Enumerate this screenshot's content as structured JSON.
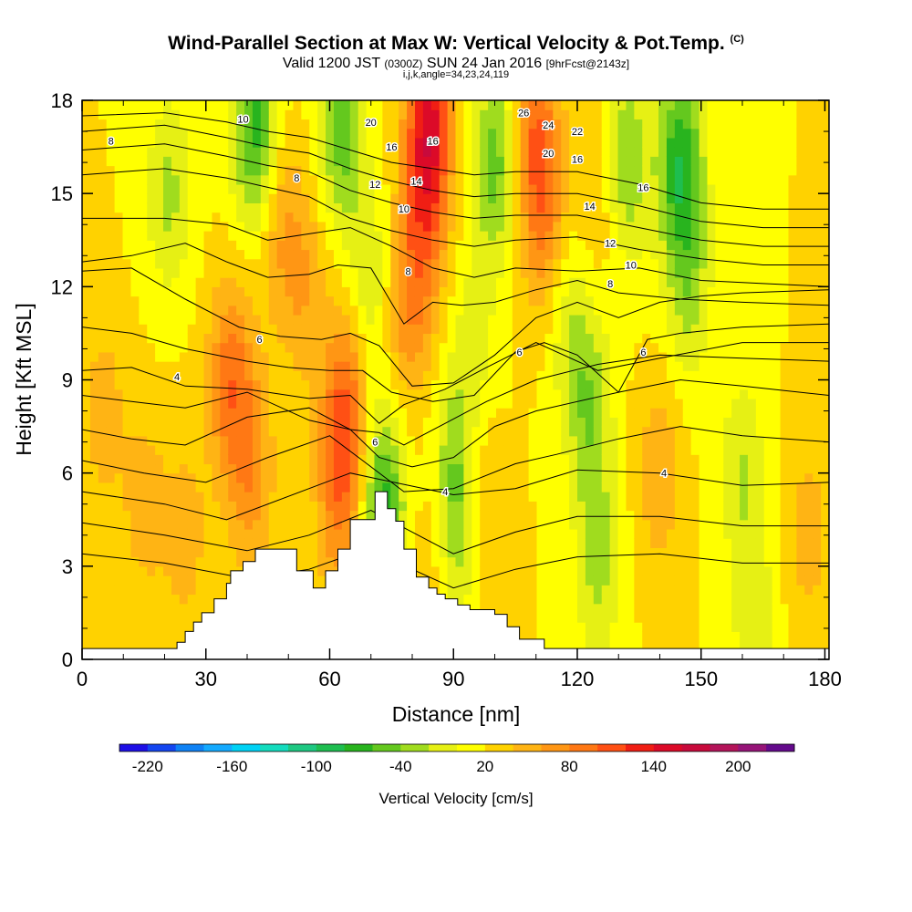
{
  "title": {
    "main": "Wind-Parallel Section at Max W: Vertical Velocity & Pot.Temp.",
    "copyright": "(C)",
    "valid_prefix": "Valid 1200 JST",
    "valid_utc": "(0300Z)",
    "valid_date": "SUN 24 Jan 2016",
    "forecast": "[9hrFcst@2143z]",
    "params": "i,j,k,angle=34,23,24,119"
  },
  "chart_data": {
    "type": "heatmap",
    "xlabel": "Distance [nm]",
    "ylabel": "Height [Kft MSL]",
    "xlim": [
      0,
      181
    ],
    "ylim": [
      0,
      18
    ],
    "xticks": [
      0,
      30,
      60,
      90,
      120,
      150,
      180
    ],
    "yticks": [
      0,
      3,
      6,
      9,
      12,
      15,
      18
    ],
    "colorbar": {
      "label": "Vertical Velocity [cm/s]",
      "min": -240,
      "max": 240,
      "step": 20,
      "tick_values": [
        -220,
        -160,
        -100,
        -40,
        20,
        80,
        140,
        200
      ],
      "tick_labels": [
        "-220",
        "-160",
        "-100",
        "-40",
        "20",
        "80",
        "140",
        "200"
      ],
      "colors": [
        "#1e0fe6",
        "#1446f0",
        "#0f82f5",
        "#14aaff",
        "#00d2f5",
        "#14dcbe",
        "#1ec882",
        "#1ebe50",
        "#28b41e",
        "#64c81e",
        "#a0dc1e",
        "#e6f014",
        "#ffff00",
        "#ffd200",
        "#ffb414",
        "#ff9614",
        "#ff7814",
        "#ff5014",
        "#f01e14",
        "#dc0a28",
        "#c80a3c",
        "#b4145a",
        "#961478",
        "#640a8c"
      ]
    },
    "vertical_velocity": {
      "background": 20,
      "features": [
        {
          "x": 5,
          "y": 8,
          "value": 50
        },
        {
          "x": 15,
          "y": 5,
          "value": 50
        },
        {
          "x": 25,
          "y": 4,
          "value": 50
        },
        {
          "x": 36,
          "y": 9,
          "value": 90
        },
        {
          "x": 41,
          "y": 6,
          "value": 70
        },
        {
          "x": 48,
          "y": 14,
          "value": 60
        },
        {
          "x": 54,
          "y": 12,
          "value": 55
        },
        {
          "x": 64,
          "y": 8,
          "value": 100
        },
        {
          "x": 62,
          "y": 5,
          "value": 70
        },
        {
          "x": 78,
          "y": 11,
          "value": 60
        },
        {
          "x": 84,
          "y": 17,
          "value": 150
        },
        {
          "x": 82,
          "y": 13,
          "value": 70
        },
        {
          "x": 96,
          "y": 5,
          "value": 60
        },
        {
          "x": 86,
          "y": 4,
          "value": 45
        },
        {
          "x": 110,
          "y": 17,
          "value": 90
        },
        {
          "x": 112,
          "y": 14,
          "value": 70
        },
        {
          "x": 125,
          "y": 15,
          "value": 45
        },
        {
          "x": 140,
          "y": 6,
          "value": 55
        },
        {
          "x": 176,
          "y": 4,
          "value": 50
        },
        {
          "x": 42,
          "y": 17,
          "value": -70
        },
        {
          "x": 63,
          "y": 17,
          "value": -50
        },
        {
          "x": 100,
          "y": 16,
          "value": -50
        },
        {
          "x": 145,
          "y": 16,
          "value": -75
        },
        {
          "x": 132,
          "y": 16,
          "value": -40
        },
        {
          "x": 73,
          "y": 5,
          "value": -70
        },
        {
          "x": 90,
          "y": 6,
          "value": -35
        },
        {
          "x": 92,
          "y": 4,
          "value": -25
        },
        {
          "x": 123,
          "y": 8,
          "value": -35
        },
        {
          "x": 125,
          "y": 3,
          "value": -25
        },
        {
          "x": 118,
          "y": 11,
          "value": -15
        },
        {
          "x": 160,
          "y": 6,
          "value": -20
        },
        {
          "x": 163,
          "y": 1,
          "value": -15
        },
        {
          "x": 147,
          "y": 12,
          "value": -25
        },
        {
          "x": 21,
          "y": 15,
          "value": -25
        },
        {
          "x": 70,
          "y": 12,
          "value": -20
        },
        {
          "x": 95,
          "y": 10,
          "value": -10
        }
      ]
    },
    "terrain": {
      "x": [
        0,
        22,
        23,
        25,
        27,
        29,
        32,
        35,
        36,
        39,
        42,
        49,
        52,
        56,
        59,
        62,
        65,
        71,
        73,
        74,
        76,
        78,
        81,
        84,
        86,
        88,
        91,
        94,
        100,
        103,
        106,
        109,
        112,
        115,
        181
      ],
      "height": [
        0.35,
        0.35,
        0.55,
        0.9,
        1.2,
        1.5,
        1.95,
        2.45,
        2.85,
        3.15,
        3.55,
        3.55,
        2.85,
        2.3,
        2.85,
        3.55,
        4.5,
        5.4,
        5.4,
        4.85,
        4.45,
        3.55,
        2.65,
        2.3,
        2.1,
        1.95,
        1.75,
        1.6,
        1.45,
        1.05,
        0.65,
        0.65,
        0.35,
        0.35,
        0.35
      ]
    },
    "potential_temperature": {
      "contour_interval": 0.5,
      "labels_shown": [
        "4",
        "6",
        "8",
        "10",
        "12",
        "14",
        "16",
        "18",
        "20",
        "22",
        "24",
        "26"
      ],
      "lines": [
        {
          "x": [
            0,
            20,
            40,
            55,
            70,
            80,
            90,
            105,
            120,
            140,
            160,
            181
          ],
          "y": [
            3.4,
            3.1,
            2.6,
            2.9,
            3.6,
            2.9,
            2.3,
            2.9,
            3.3,
            3.4,
            3.1,
            3.1
          ]
        },
        {
          "x": [
            0,
            20,
            40,
            55,
            70,
            80,
            90,
            105,
            120,
            140,
            160,
            181
          ],
          "y": [
            4.4,
            4.0,
            3.5,
            4.0,
            4.8,
            4.1,
            3.4,
            4.1,
            4.6,
            4.6,
            4.3,
            4.3
          ]
        },
        {
          "x": [
            0,
            20,
            35,
            55,
            65,
            72,
            90,
            105,
            120,
            140,
            160,
            181
          ],
          "y": [
            5.4,
            5.0,
            4.5,
            5.5,
            6.0,
            5.8,
            5.3,
            5.5,
            6.1,
            6.0,
            5.6,
            5.7
          ]
        },
        {
          "x": [
            0,
            15,
            30,
            45,
            60,
            68,
            78,
            90,
            105,
            115,
            130,
            145,
            160,
            181
          ],
          "y": [
            6.4,
            6.0,
            5.7,
            6.5,
            7.2,
            6.4,
            5.4,
            5.5,
            6.3,
            6.6,
            7.1,
            7.5,
            7.2,
            7.0
          ]
        },
        {
          "x": [
            0,
            12,
            25,
            40,
            55,
            65,
            72,
            80,
            90,
            100,
            110,
            130,
            145,
            160,
            181
          ],
          "y": [
            7.4,
            7.1,
            6.9,
            7.8,
            8.1,
            7.4,
            6.5,
            6.2,
            6.5,
            7.5,
            8.0,
            8.6,
            9.0,
            8.8,
            8.5
          ]
        },
        {
          "x": [
            0,
            12,
            25,
            40,
            55,
            65,
            72,
            78,
            88,
            98,
            110,
            125,
            140,
            160,
            181
          ],
          "y": [
            8.5,
            8.3,
            8.1,
            8.6,
            7.7,
            7.4,
            7.3,
            6.9,
            7.6,
            8.3,
            9.0,
            9.5,
            9.8,
            9.7,
            9.6
          ]
        },
        {
          "x": [
            0,
            12,
            25,
            40,
            55,
            65,
            72,
            78,
            88,
            98,
            110,
            125,
            140,
            160,
            181
          ],
          "y": [
            9.3,
            9.4,
            8.8,
            8.7,
            8.4,
            8.5,
            7.6,
            8.2,
            8.7,
            9.4,
            10.2,
            9.3,
            9.7,
            10.2,
            10.2
          ]
        },
        {
          "x": [
            0,
            12,
            25,
            40,
            50,
            60,
            68,
            75,
            85,
            95,
            105,
            112,
            120,
            130,
            137,
            145,
            160,
            181
          ],
          "y": [
            10.7,
            10.5,
            10.0,
            9.6,
            9.4,
            9.3,
            9.3,
            8.6,
            8.3,
            8.5,
            9.9,
            10.2,
            9.8,
            8.6,
            10.3,
            10.5,
            10.7,
            10.8
          ]
        },
        {
          "x": [
            0,
            12,
            25,
            38,
            48,
            58,
            65,
            72,
            80,
            90,
            100,
            110,
            120,
            130,
            140,
            150,
            160,
            181
          ],
          "y": [
            12.5,
            12.6,
            11.6,
            10.7,
            10.4,
            10.3,
            10.5,
            10.1,
            8.8,
            8.9,
            9.8,
            11.0,
            11.5,
            11.0,
            11.5,
            11.7,
            11.8,
            11.9
          ]
        },
        {
          "x": [
            0,
            12,
            25,
            35,
            45,
            55,
            62,
            70,
            78,
            85,
            92,
            100,
            110,
            120,
            130,
            145,
            160,
            181
          ],
          "y": [
            12.8,
            13.0,
            13.4,
            12.8,
            12.3,
            12.4,
            12.7,
            12.6,
            10.8,
            11.5,
            11.4,
            11.5,
            11.9,
            12.2,
            11.8,
            11.6,
            11.5,
            11.4
          ]
        },
        {
          "x": [
            0,
            20,
            35,
            45,
            55,
            65,
            75,
            85,
            95,
            105,
            120,
            135,
            150,
            165,
            181
          ],
          "y": [
            14.2,
            14.2,
            14.0,
            13.5,
            13.7,
            13.9,
            13.3,
            12.6,
            12.3,
            12.6,
            12.5,
            12.6,
            12.2,
            12.1,
            12.0
          ]
        },
        {
          "x": [
            0,
            20,
            35,
            45,
            55,
            65,
            75,
            85,
            95,
            105,
            120,
            135,
            150,
            165,
            181
          ],
          "y": [
            15.6,
            15.8,
            15.5,
            15.2,
            14.9,
            14.2,
            13.8,
            13.5,
            13.3,
            13.5,
            13.6,
            13.2,
            12.9,
            12.7,
            12.7
          ]
        },
        {
          "x": [
            0,
            20,
            35,
            45,
            55,
            65,
            75,
            85,
            95,
            105,
            120,
            135,
            150,
            165,
            181
          ],
          "y": [
            16.4,
            16.6,
            16.2,
            15.9,
            15.7,
            15.1,
            14.7,
            14.4,
            14.2,
            14.3,
            14.3,
            13.9,
            13.5,
            13.3,
            13.3
          ]
        },
        {
          "x": [
            0,
            20,
            35,
            45,
            55,
            65,
            75,
            85,
            95,
            105,
            120,
            135,
            150,
            165,
            181
          ],
          "y": [
            17.0,
            17.2,
            16.8,
            16.5,
            16.3,
            15.8,
            15.4,
            15.1,
            14.9,
            15.0,
            15.0,
            14.6,
            14.1,
            13.9,
            13.9
          ]
        },
        {
          "x": [
            0,
            20,
            35,
            45,
            55,
            65,
            75,
            85,
            95,
            105,
            120,
            135,
            150,
            165,
            181
          ],
          "y": [
            17.5,
            17.6,
            17.3,
            17.0,
            16.8,
            16.4,
            16.0,
            15.8,
            15.6,
            15.7,
            15.7,
            15.3,
            14.7,
            14.5,
            14.5
          ]
        }
      ]
    }
  }
}
